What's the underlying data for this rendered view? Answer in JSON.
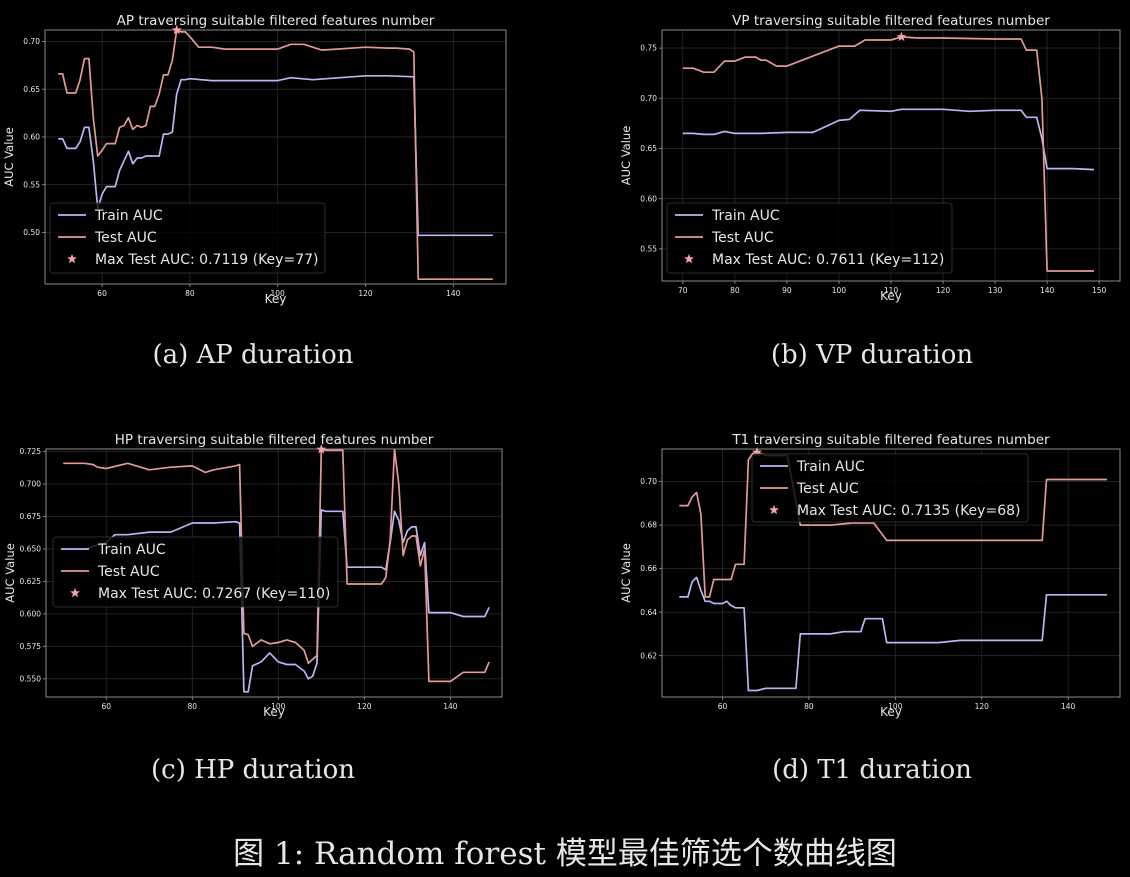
{
  "figure_caption": "图 1: Random forest 模型最佳筛选个数曲线图",
  "colors": {
    "train": "#b9b6f2",
    "test": "#e39a95",
    "star": "#f0a4a8",
    "axis": "#9a9a9a",
    "grid": "#2a2a2a",
    "text": "#e6e6e6",
    "bg": "#000000"
  },
  "chart_data": [
    {
      "type": "line",
      "subcaption": "(a) AP duration",
      "title": "AP traversing suitable filtered features number",
      "xlabel": "Key",
      "ylabel": "AUC Value",
      "xlim": [
        47,
        152
      ],
      "ylim": [
        0.446,
        0.712
      ],
      "xticks": [
        60,
        80,
        100,
        120,
        140
      ],
      "yticks": [
        0.5,
        0.55,
        0.6,
        0.65,
        0.7
      ],
      "ytick_labels": [
        "0.50",
        "0.55",
        "0.60",
        "0.65",
        "0.70"
      ],
      "legend_position": "lower left",
      "max_point": {
        "x": 77,
        "y": 0.7119
      },
      "series": [
        {
          "name": "Train AUC",
          "color_key": "train",
          "x": [
            50,
            51,
            52,
            53,
            54,
            55,
            56,
            57,
            58,
            59,
            60,
            61,
            62,
            63,
            64,
            65,
            66,
            67,
            68,
            69,
            70,
            71,
            72,
            73,
            74,
            75,
            76,
            77,
            78,
            79,
            80,
            85,
            90,
            100,
            103,
            108,
            120,
            125,
            131,
            132,
            140,
            149
          ],
          "y": [
            0.598,
            0.598,
            0.588,
            0.588,
            0.588,
            0.595,
            0.61,
            0.61,
            0.575,
            0.525,
            0.54,
            0.548,
            0.548,
            0.548,
            0.565,
            0.575,
            0.585,
            0.572,
            0.578,
            0.578,
            0.58,
            0.58,
            0.58,
            0.58,
            0.603,
            0.603,
            0.605,
            0.645,
            0.66,
            0.66,
            0.661,
            0.659,
            0.659,
            0.659,
            0.662,
            0.66,
            0.664,
            0.664,
            0.663,
            0.497,
            0.497,
            0.497
          ]
        },
        {
          "name": "Test AUC",
          "color_key": "test",
          "x": [
            50,
            51,
            52,
            53,
            54,
            55,
            56,
            57,
            58,
            59,
            60,
            61,
            62,
            63,
            64,
            65,
            66,
            67,
            68,
            69,
            70,
            71,
            72,
            73,
            74,
            75,
            76,
            77,
            78,
            79,
            80,
            82,
            85,
            88,
            90,
            100,
            103,
            106,
            110,
            120,
            125,
            127,
            130,
            131,
            132,
            149
          ],
          "y": [
            0.666,
            0.666,
            0.646,
            0.646,
            0.646,
            0.66,
            0.682,
            0.682,
            0.62,
            0.58,
            0.586,
            0.593,
            0.593,
            0.593,
            0.61,
            0.612,
            0.62,
            0.608,
            0.612,
            0.61,
            0.612,
            0.632,
            0.632,
            0.645,
            0.665,
            0.665,
            0.68,
            0.7119,
            0.71,
            0.71,
            0.705,
            0.694,
            0.694,
            0.692,
            0.692,
            0.692,
            0.697,
            0.697,
            0.691,
            0.694,
            0.693,
            0.693,
            0.692,
            0.689,
            0.451,
            0.451
          ]
        }
      ]
    },
    {
      "type": "line",
      "subcaption": "(b) VP duration",
      "title": "VP traversing suitable filtered features number",
      "xlabel": "Key",
      "ylabel": "AUC Value",
      "xlim": [
        66,
        154
      ],
      "ylim": [
        0.518,
        0.768
      ],
      "xticks": [
        70,
        80,
        90,
        100,
        110,
        120,
        130,
        140,
        150
      ],
      "yticks": [
        0.55,
        0.6,
        0.65,
        0.7,
        0.75
      ],
      "ytick_labels": [
        "0.55",
        "0.60",
        "0.65",
        "0.70",
        "0.75"
      ],
      "legend_position": "lower left",
      "max_point": {
        "x": 112,
        "y": 0.7611
      },
      "series": [
        {
          "name": "Train AUC",
          "color_key": "train",
          "x": [
            70,
            72,
            74,
            76,
            78,
            80,
            85,
            90,
            95,
            100,
            102,
            104,
            110,
            112,
            120,
            125,
            130,
            135,
            136,
            137,
            138,
            139,
            140,
            145,
            149
          ],
          "y": [
            0.665,
            0.665,
            0.664,
            0.664,
            0.667,
            0.665,
            0.665,
            0.666,
            0.666,
            0.678,
            0.679,
            0.688,
            0.687,
            0.689,
            0.689,
            0.687,
            0.688,
            0.688,
            0.681,
            0.681,
            0.681,
            0.66,
            0.63,
            0.63,
            0.629
          ]
        },
        {
          "name": "Test AUC",
          "color_key": "test",
          "x": [
            70,
            72,
            74,
            76,
            78,
            80,
            82,
            84,
            85,
            86,
            88,
            90,
            95,
            100,
            103,
            105,
            110,
            112,
            115,
            120,
            130,
            135,
            136,
            137,
            138,
            139,
            140,
            149
          ],
          "y": [
            0.73,
            0.73,
            0.726,
            0.726,
            0.737,
            0.737,
            0.741,
            0.741,
            0.738,
            0.738,
            0.732,
            0.732,
            0.742,
            0.752,
            0.752,
            0.758,
            0.758,
            0.7611,
            0.76,
            0.76,
            0.759,
            0.759,
            0.748,
            0.748,
            0.748,
            0.7,
            0.528,
            0.528
          ]
        }
      ]
    },
    {
      "type": "line",
      "subcaption": "(c) HP duration",
      "title": "HP traversing suitable filtered features number",
      "xlabel": "Key",
      "ylabel": "AUC Value",
      "xlim": [
        46,
        152
      ],
      "ylim": [
        0.536,
        0.727
      ],
      "xticks": [
        60,
        80,
        100,
        120,
        140
      ],
      "yticks": [
        0.55,
        0.575,
        0.6,
        0.625,
        0.65,
        0.675,
        0.7,
        0.725
      ],
      "ytick_labels": [
        "0.550",
        "0.575",
        "0.600",
        "0.625",
        "0.650",
        "0.675",
        "0.700",
        "0.725"
      ],
      "legend_position": "center left",
      "max_point": {
        "x": 110,
        "y": 0.7267
      },
      "series": [
        {
          "name": "Train AUC",
          "color_key": "train",
          "x": [
            50,
            55,
            60,
            62,
            65,
            70,
            75,
            80,
            85,
            90,
            91,
            92,
            93,
            94,
            96,
            98,
            100,
            102,
            104,
            106,
            107,
            108,
            109,
            110,
            111,
            115,
            116,
            120,
            124,
            125,
            126,
            127,
            128,
            129,
            130,
            131,
            132,
            133,
            134,
            135,
            136,
            140,
            143,
            148,
            149
          ],
          "y": [
            0.65,
            0.65,
            0.655,
            0.661,
            0.661,
            0.663,
            0.663,
            0.67,
            0.67,
            0.671,
            0.67,
            0.54,
            0.54,
            0.56,
            0.563,
            0.57,
            0.563,
            0.561,
            0.561,
            0.556,
            0.55,
            0.552,
            0.562,
            0.68,
            0.679,
            0.679,
            0.636,
            0.636,
            0.636,
            0.634,
            0.655,
            0.679,
            0.672,
            0.655,
            0.664,
            0.667,
            0.667,
            0.645,
            0.655,
            0.601,
            0.601,
            0.601,
            0.598,
            0.598,
            0.605
          ]
        },
        {
          "name": "Test AUC",
          "color_key": "test",
          "x": [
            50,
            55,
            57,
            58,
            60,
            65,
            68,
            70,
            75,
            80,
            83,
            85,
            90,
            91,
            92,
            93,
            94,
            96,
            98,
            100,
            102,
            104,
            106,
            107,
            108,
            109,
            110,
            111,
            115,
            116,
            120,
            124,
            125,
            126,
            127,
            128,
            129,
            130,
            131,
            132,
            133,
            134,
            135,
            136,
            140,
            143,
            148,
            149
          ],
          "y": [
            0.716,
            0.716,
            0.715,
            0.713,
            0.712,
            0.716,
            0.713,
            0.711,
            0.713,
            0.714,
            0.709,
            0.711,
            0.714,
            0.715,
            0.585,
            0.584,
            0.575,
            0.58,
            0.577,
            0.578,
            0.58,
            0.578,
            0.572,
            0.562,
            0.565,
            0.568,
            0.7267,
            0.726,
            0.726,
            0.623,
            0.623,
            0.623,
            0.628,
            0.657,
            0.7267,
            0.7,
            0.645,
            0.657,
            0.66,
            0.66,
            0.637,
            0.65,
            0.548,
            0.548,
            0.548,
            0.555,
            0.555,
            0.563
          ]
        }
      ]
    },
    {
      "type": "line",
      "subcaption": "(d) T1 duration",
      "title": "T1 traversing suitable filtered features number",
      "xlabel": "Key",
      "ylabel": "AUC Value",
      "xlim": [
        46,
        152
      ],
      "ylim": [
        0.601,
        0.715
      ],
      "xticks": [
        60,
        80,
        100,
        120,
        140
      ],
      "yticks": [
        0.62,
        0.64,
        0.66,
        0.68,
        0.7
      ],
      "ytick_labels": [
        "0.62",
        "0.64",
        "0.66",
        "0.68",
        "0.70"
      ],
      "legend_position": "upper center",
      "max_point": {
        "x": 68,
        "y": 0.7135
      },
      "series": [
        {
          "name": "Train AUC",
          "color_key": "train",
          "x": [
            50,
            52,
            53,
            54,
            55,
            56,
            57,
            58,
            60,
            61,
            62,
            63,
            64,
            65,
            66,
            67,
            68,
            70,
            72,
            77,
            78,
            80,
            85,
            88,
            92,
            93,
            95,
            97,
            98,
            100,
            105,
            110,
            115,
            120,
            130,
            134,
            135,
            149
          ],
          "y": [
            0.647,
            0.647,
            0.654,
            0.656,
            0.65,
            0.645,
            0.645,
            0.644,
            0.644,
            0.645,
            0.643,
            0.642,
            0.642,
            0.642,
            0.604,
            0.604,
            0.604,
            0.605,
            0.605,
            0.605,
            0.63,
            0.63,
            0.63,
            0.631,
            0.631,
            0.637,
            0.637,
            0.637,
            0.626,
            0.626,
            0.626,
            0.626,
            0.627,
            0.627,
            0.627,
            0.627,
            0.648,
            0.648
          ]
        },
        {
          "name": "Test AUC",
          "color_key": "test",
          "x": [
            50,
            52,
            53,
            54,
            55,
            56,
            57,
            58,
            60,
            61,
            62,
            63,
            64,
            65,
            66,
            67,
            68,
            70,
            72,
            75,
            78,
            80,
            85,
            90,
            95,
            98,
            100,
            105,
            110,
            115,
            120,
            130,
            133,
            134,
            135,
            149
          ],
          "y": [
            0.689,
            0.689,
            0.693,
            0.695,
            0.685,
            0.647,
            0.647,
            0.655,
            0.655,
            0.655,
            0.655,
            0.662,
            0.662,
            0.662,
            0.71,
            0.713,
            0.7135,
            0.712,
            0.712,
            0.712,
            0.68,
            0.68,
            0.68,
            0.681,
            0.681,
            0.673,
            0.673,
            0.673,
            0.673,
            0.673,
            0.673,
            0.673,
            0.673,
            0.673,
            0.701,
            0.701
          ]
        }
      ]
    }
  ]
}
